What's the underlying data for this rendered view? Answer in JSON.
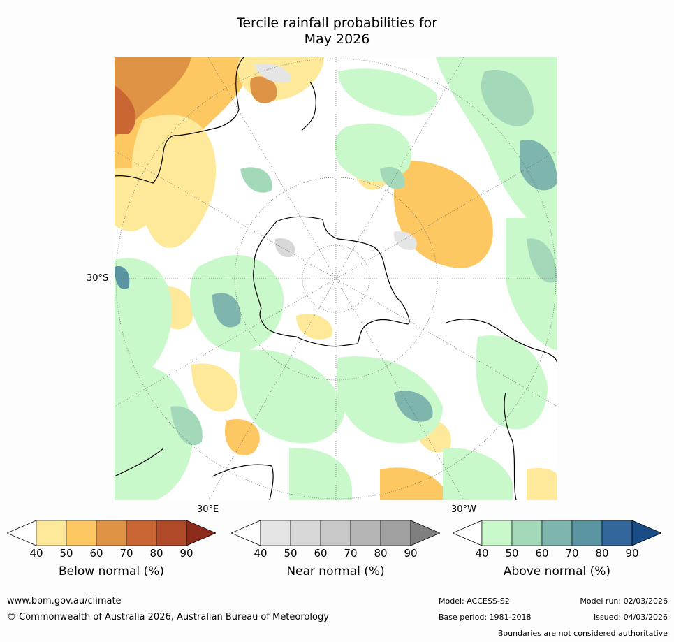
{
  "title": {
    "line1": "Tercile rainfall probabilities for",
    "line2": "May 2026"
  },
  "map": {
    "projection": "South polar stereographic",
    "labels": {
      "lat_30s": "30°S",
      "lon_30e": "30°E",
      "lon_30w": "30°W"
    },
    "colors": {
      "land_outline": "#000000",
      "gridline": "#666666"
    }
  },
  "colorbars": [
    {
      "title": "Below normal (%)",
      "ticks": [
        "40",
        "50",
        "60",
        "70",
        "80",
        "90"
      ],
      "colors": [
        "#ffffff",
        "#fee99a",
        "#fdc862",
        "#df9344",
        "#c96433",
        "#b04a28",
        "#8c2a1c"
      ]
    },
    {
      "title": "Near normal (%)",
      "ticks": [
        "40",
        "50",
        "60",
        "70",
        "80",
        "90"
      ],
      "colors": [
        "#ffffff",
        "#e5e5e5",
        "#d8d8d8",
        "#c8c8c8",
        "#b5b5b5",
        "#a0a0a0",
        "#7f7f7f"
      ]
    },
    {
      "title": "Above normal (%)",
      "ticks": [
        "40",
        "50",
        "60",
        "70",
        "80",
        "90"
      ],
      "colors": [
        "#ffffff",
        "#c9f8cb",
        "#a3d9b9",
        "#7eb5ad",
        "#5b95a2",
        "#33669a",
        "#1a4d86"
      ]
    }
  ],
  "footer": {
    "url": "www.bom.gov.au/climate",
    "copyright": "© Commonwealth of Australia 2026, Australian Bureau of Meteorology",
    "model": "Model: ACCESS-S2",
    "model_run": "Model run: 02/03/2026",
    "base_period": "Base period: 1981-2018",
    "issued": "Issued: 04/03/2026",
    "disclaimer": "Boundaries are not considered authoritative"
  }
}
